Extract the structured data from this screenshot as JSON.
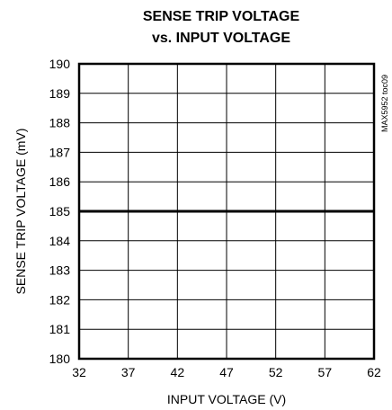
{
  "chart_data": {
    "type": "line",
    "title": [
      "SENSE TRIP VOLTAGE",
      "vs. INPUT VOLTAGE"
    ],
    "xlabel": "INPUT VOLTAGE (V)",
    "ylabel": "SENSE TRIP VOLTAGE (mV)",
    "xlim": [
      32,
      62
    ],
    "ylim": [
      180,
      190
    ],
    "xticks": [
      32,
      37,
      42,
      47,
      52,
      57,
      62
    ],
    "yticks": [
      180,
      181,
      182,
      183,
      184,
      185,
      186,
      187,
      188,
      189,
      190
    ],
    "grid": true,
    "series": [
      {
        "x": [
          32,
          62
        ],
        "y": [
          185,
          185
        ],
        "color": "#000000"
      }
    ],
    "side_note": "MAX5952 toc09"
  }
}
